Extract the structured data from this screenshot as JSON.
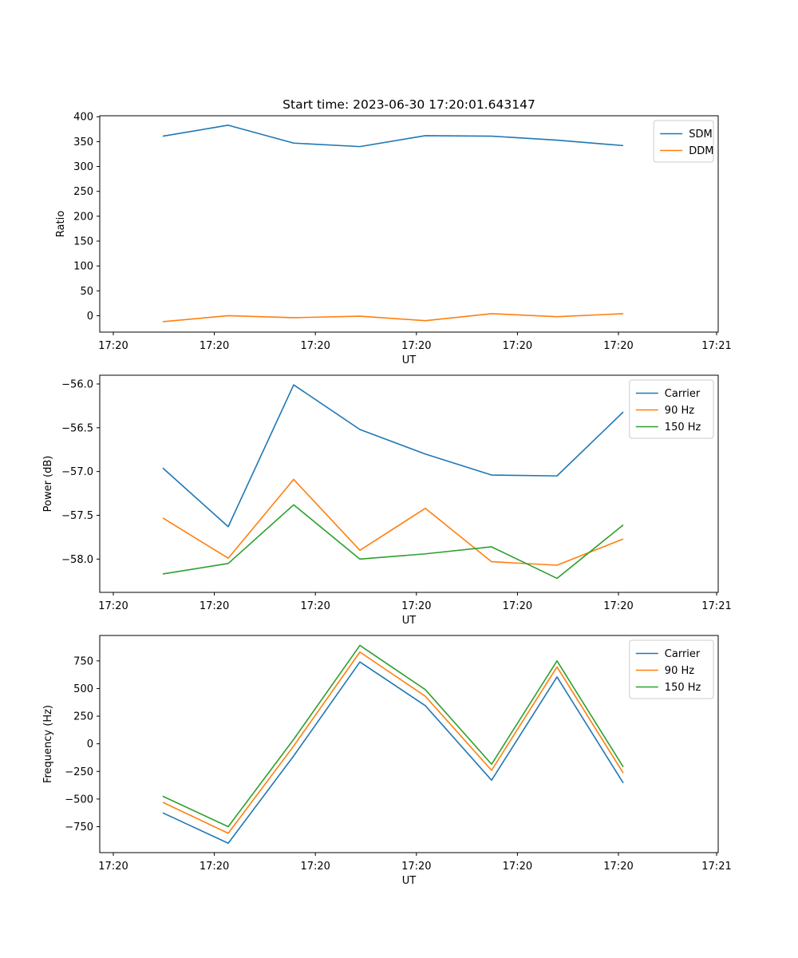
{
  "title": "Start time: 2023-06-30 17:20:01.643147",
  "colors": {
    "blue": "#1f77b4",
    "orange": "#ff7f0e",
    "green": "#2ca02c"
  },
  "chart_data": [
    {
      "type": "line",
      "xlabel": "UT",
      "ylabel": "Ratio",
      "x_tick_labels": [
        "17:20",
        "17:20",
        "17:20",
        "17:20",
        "17:20",
        "17:20",
        "17:20",
        "17:21"
      ],
      "ylim": [
        -33,
        402
      ],
      "y_ticks": [
        0,
        50,
        100,
        150,
        200,
        250,
        300,
        350,
        400
      ],
      "legend_position": "upper right",
      "series": [
        {
          "name": "SDM",
          "color": "#1f77b4",
          "values": [
            361,
            383,
            347,
            340,
            362,
            361,
            353,
            342
          ]
        },
        {
          "name": "DDM",
          "color": "#ff7f0e",
          "values": [
            -12,
            0,
            -4,
            -1,
            -10,
            4,
            -2,
            4
          ]
        }
      ]
    },
    {
      "type": "line",
      "xlabel": "UT",
      "ylabel": "Power (dB)",
      "x_tick_labels": [
        "17:20",
        "17:20",
        "17:20",
        "17:20",
        "17:20",
        "17:20",
        "17:20",
        "17:21"
      ],
      "ylim": [
        -58.38,
        -55.9
      ],
      "y_ticks": [
        -56.0,
        -56.5,
        -57.0,
        -57.5,
        -58.0
      ],
      "y_tick_labels": [
        "−56.0",
        "−56.5",
        "−57.0",
        "−57.5",
        "−58.0"
      ],
      "legend_position": "upper right",
      "series": [
        {
          "name": "Carrier",
          "color": "#1f77b4",
          "values": [
            -56.96,
            -57.63,
            -56.01,
            -56.52,
            -56.8,
            -57.04,
            -57.05,
            -56.32
          ]
        },
        {
          "name": "90 Hz",
          "color": "#ff7f0e",
          "values": [
            -57.53,
            -57.99,
            -57.09,
            -57.9,
            -57.42,
            -58.03,
            -58.07,
            -57.77
          ]
        },
        {
          "name": "150 Hz",
          "color": "#2ca02c",
          "values": [
            -58.17,
            -58.05,
            -57.38,
            -58.0,
            -57.94,
            -57.86,
            -58.22,
            -57.61
          ]
        }
      ]
    },
    {
      "type": "line",
      "xlabel": "UT",
      "ylabel": "Frequency (Hz)",
      "x_tick_labels": [
        "17:20",
        "17:20",
        "17:20",
        "17:20",
        "17:20",
        "17:20",
        "17:20",
        "17:21"
      ],
      "ylim": [
        -985,
        980
      ],
      "y_ticks": [
        750,
        500,
        250,
        0,
        -250,
        -500,
        -750
      ],
      "y_tick_labels": [
        "750",
        "500",
        "250",
        "0",
        "−250",
        "−500",
        "−750"
      ],
      "legend_position": "upper right",
      "series": [
        {
          "name": "Carrier",
          "color": "#1f77b4",
          "values": [
            -625,
            -900,
            -110,
            740,
            345,
            -330,
            605,
            -355
          ]
        },
        {
          "name": "90 Hz",
          "color": "#ff7f0e",
          "values": [
            -530,
            -810,
            -20,
            830,
            430,
            -240,
            695,
            -265
          ]
        },
        {
          "name": "150 Hz",
          "color": "#2ca02c",
          "values": [
            -475,
            -750,
            40,
            890,
            490,
            -185,
            750,
            -210
          ]
        }
      ]
    }
  ]
}
